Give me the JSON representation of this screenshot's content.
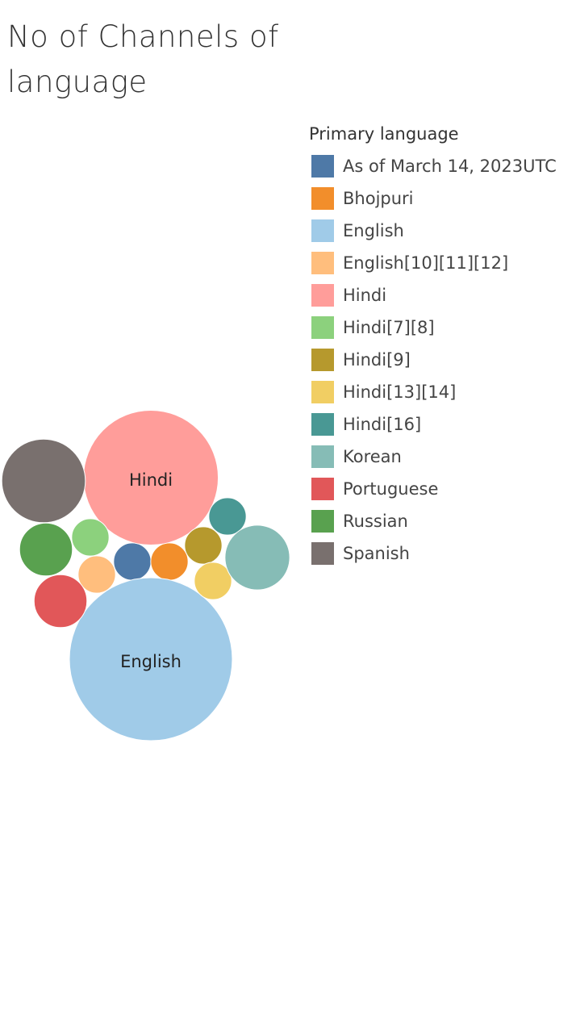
{
  "chart_data": {
    "type": "bubble",
    "title": "No of Channels of language",
    "legend_title": "Primary language",
    "legend_position": "right",
    "series": [
      {
        "name": "As of March 14, 2023UTC",
        "color": "#4e79a7",
        "value": 1
      },
      {
        "name": "Bhojpuri",
        "color": "#f28e2b",
        "value": 1
      },
      {
        "name": "English",
        "color": "#a0cbe8",
        "value": 19
      },
      {
        "name": "English[10][11][12]",
        "color": "#ffbe7d",
        "value": 1
      },
      {
        "name": "Hindi",
        "color": "#ff9d9a",
        "value": 13
      },
      {
        "name": "Hindi[7][8]",
        "color": "#8cd17d",
        "value": 1
      },
      {
        "name": "Hindi[9]",
        "color": "#b6992d",
        "value": 1
      },
      {
        "name": "Hindi[13][14]",
        "color": "#f1ce63",
        "value": 1
      },
      {
        "name": "Hindi[16]",
        "color": "#499894",
        "value": 1
      },
      {
        "name": "Korean",
        "color": "#86bcb6",
        "value": 3
      },
      {
        "name": "Portuguese",
        "color": "#e15759",
        "value": 2
      },
      {
        "name": "Russian",
        "color": "#59a14f",
        "value": 2
      },
      {
        "name": "Spanish",
        "color": "#79706e",
        "value": 5
      }
    ],
    "bubble_labels": [
      "Hindi",
      "English"
    ]
  }
}
